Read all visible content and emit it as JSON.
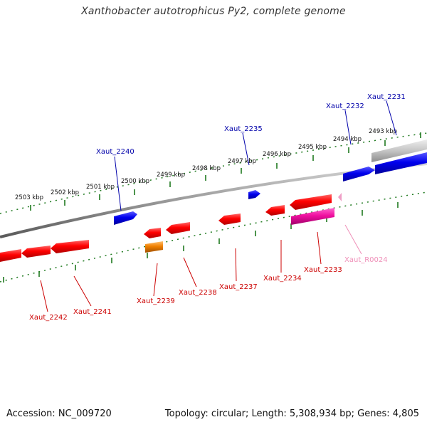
{
  "title": "Xanthobacter autotrophicus Py2, complete genome",
  "footer": {
    "accession": "Accession: NC_009720",
    "summary": "Topology: circular; Length: 5,308,934 bp; Genes: 4,805"
  },
  "colors": {
    "backbone": "#8c8c8c",
    "ruler": "#1f7a1f",
    "forward_gene": "#0000cc",
    "reverse_gene": "#e00000",
    "rna_gene": "#e8109a",
    "pseudo_gene": "#f08000",
    "faded_gene": "#bbbbbb",
    "forward_label": "#0000aa",
    "reverse_label": "#cc0000",
    "rna_label": "#ef8fb8"
  },
  "ruler_labels": [
    "2503 kbp",
    "2502 kbp",
    "2501 kbp",
    "2500 kbp",
    "2499 kbp",
    "2498 kbp",
    "2497 kbp",
    "2496 kbp",
    "2495 kbp",
    "2494 kbp",
    "2493 kbp"
  ],
  "forward_labels": [
    "Xaut_2240",
    "Xaut_2235",
    "Xaut_2232",
    "Xaut_2231"
  ],
  "reverse_labels": [
    "Xaut_2242",
    "Xaut_2241",
    "Xaut_2239",
    "Xaut_2238",
    "Xaut_2237",
    "Xaut_2234",
    "Xaut_2233"
  ],
  "rna_labels": [
    "Xaut_R0024"
  ]
}
